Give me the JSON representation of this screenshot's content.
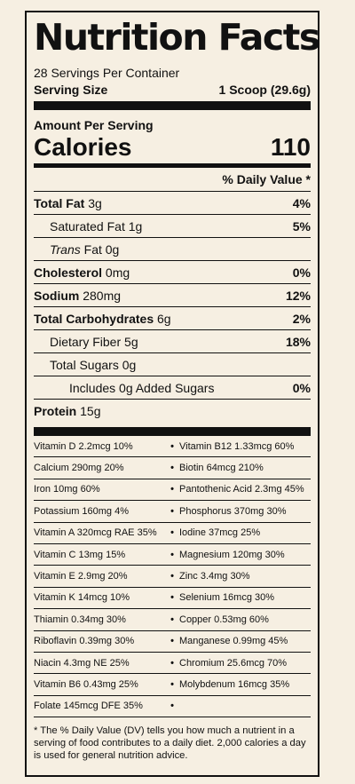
{
  "title": "Nutrition Facts",
  "servings_per_container": "28 Servings Per Container",
  "serving_size_label": "Serving Size",
  "serving_size_value": "1 Scoop (29.6g)",
  "amount_per_serving": "Amount Per Serving",
  "calories_label": "Calories",
  "calories_value": "110",
  "daily_value_header": "% Daily Value *",
  "nutrients": [
    {
      "name": "Total Fat",
      "amount": "3g",
      "pct": "4%"
    },
    {
      "name": "Saturated Fat",
      "amount": "1g",
      "pct": "5%"
    },
    {
      "name": "Trans",
      "amount": "Fat 0g",
      "pct": ""
    },
    {
      "name": "Cholesterol",
      "amount": "0mg",
      "pct": "0%"
    },
    {
      "name": "Sodium",
      "amount": "280mg",
      "pct": "12%"
    },
    {
      "name": "Total Carbohydrates",
      "amount": "6g",
      "pct": "2%"
    },
    {
      "name": "Dietary Fiber",
      "amount": "5g",
      "pct": "18%"
    },
    {
      "name": "Total Sugars",
      "amount": "0g",
      "pct": ""
    },
    {
      "name": "Includes 0g Added Sugars",
      "amount": "",
      "pct": "0%"
    },
    {
      "name": "Protein",
      "amount": "15g",
      "pct": ""
    }
  ],
  "vitamins": [
    {
      "left": "Vitamin D 2.2mcg 10%",
      "right": "Vitamin B12 1.33mcg 60%"
    },
    {
      "left": "Calcium 290mg 20%",
      "right": "Biotin 64mcg 210%"
    },
    {
      "left": "Iron 10mg 60%",
      "right": "Pantothenic Acid 2.3mg 45%"
    },
    {
      "left": "Potassium 160mg 4%",
      "right": "Phosphorus 370mg 30%"
    },
    {
      "left": "Vitamin A 320mcg RAE 35%",
      "right": "Iodine 37mcg 25%"
    },
    {
      "left": "Vitamin C 13mg 15%",
      "right": "Magnesium 120mg 30%"
    },
    {
      "left": "Vitamin E 2.9mg 20%",
      "right": "Zinc 3.4mg 30%"
    },
    {
      "left": "Vitamin K 14mcg 10%",
      "right": "Selenium 16mcg 30%"
    },
    {
      "left": "Thiamin 0.34mg 30%",
      "right": "Copper 0.53mg 60%"
    },
    {
      "left": "Riboflavin 0.39mg 30%",
      "right": "Manganese 0.99mg 45%"
    },
    {
      "left": "Niacin 4.3mg NE 25%",
      "right": "Chromium 25.6mcg 70%"
    },
    {
      "left": "Vitamin B6 0.43mg 25%",
      "right": "Molybdenum 16mcg 35%"
    },
    {
      "left": "Folate 145mcg DFE 35%",
      "right": ""
    }
  ],
  "bullet": "•",
  "footnote": "* The % Daily Value (DV) tells you how much a nutrient in a serving of food contributes to a daily diet. 2,000 calories a day is used for general nutrition advice."
}
